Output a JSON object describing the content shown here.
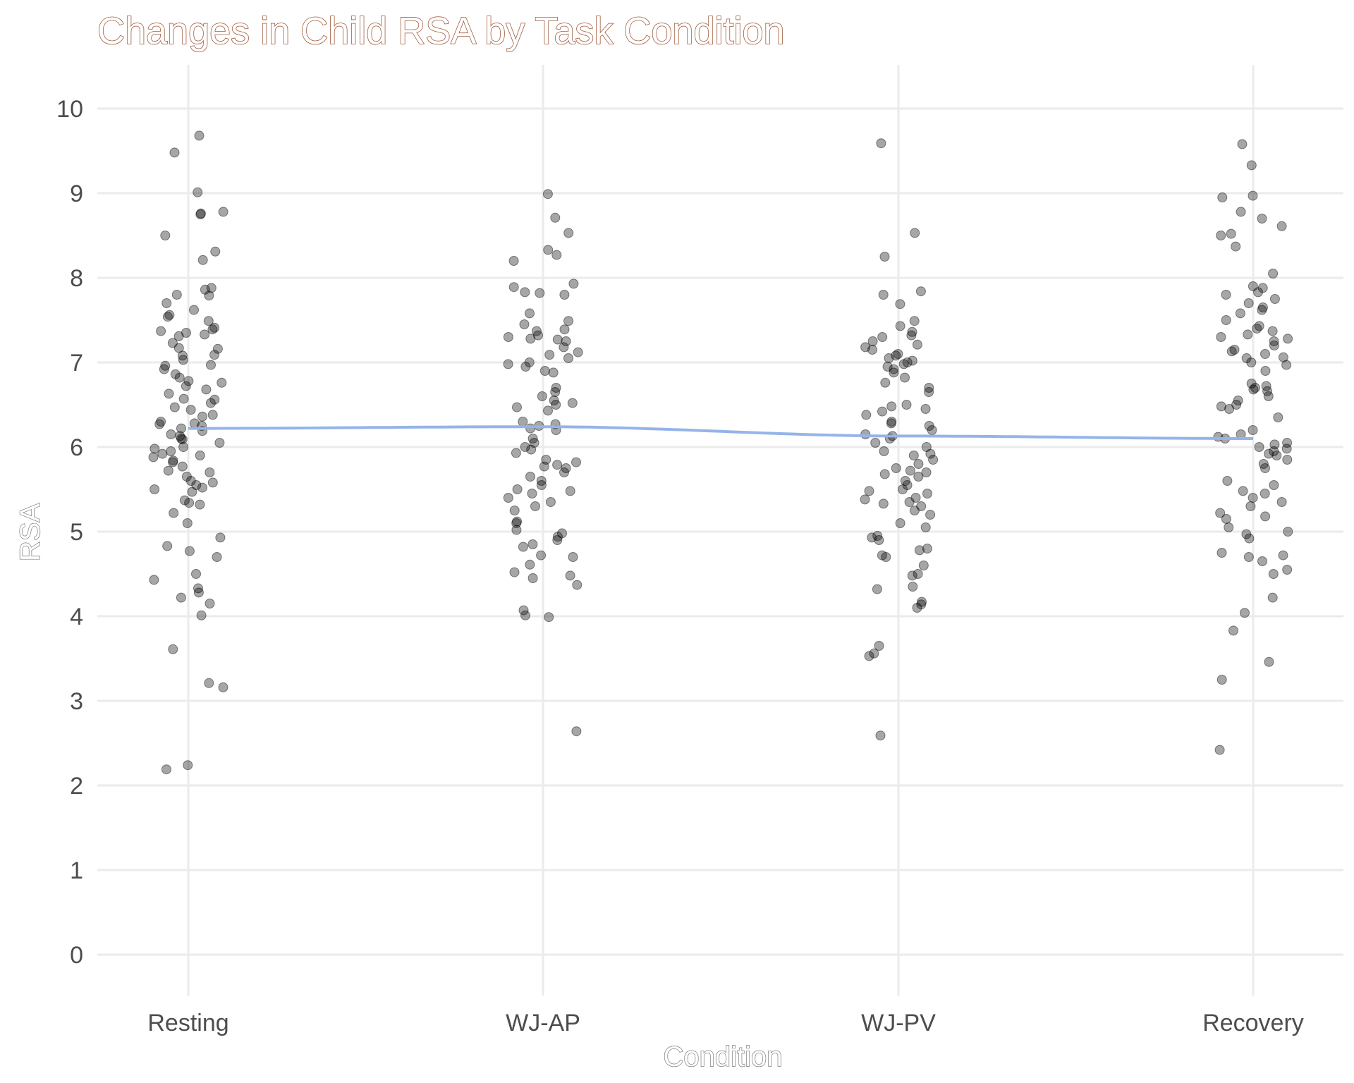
{
  "chart_data": {
    "type": "scatter",
    "title": "Changes in Child RSA by Task Condition",
    "xlabel": "Condition",
    "ylabel": "RSA",
    "categories": [
      "Resting",
      "WJ-AP",
      "WJ-PV",
      "Recovery"
    ],
    "ylim": [
      -0.5,
      10.5
    ],
    "yticks": [
      "0",
      "1",
      "2",
      "3",
      "4",
      "5",
      "6",
      "7",
      "8",
      "9",
      "10"
    ],
    "grid": true,
    "legend": "none",
    "colors": {
      "points": "#000000",
      "trend": "#95b4e8",
      "grid": "#ebebeb"
    },
    "trend_line": {
      "values": [
        6.22,
        6.24,
        6.13,
        6.1
      ]
    },
    "series": [
      {
        "category": "Resting",
        "values": [
          9.68,
          9.48,
          9.01,
          8.78,
          8.76,
          8.75,
          8.5,
          8.31,
          8.21,
          7.88,
          7.86,
          7.8,
          7.79,
          7.7,
          7.62,
          7.56,
          7.54,
          7.49,
          7.41,
          7.39,
          7.37,
          7.35,
          7.33,
          7.31,
          7.23,
          7.17,
          7.16,
          7.09,
          7.08,
          7.03,
          6.97,
          6.96,
          6.92,
          6.86,
          6.82,
          6.78,
          6.76,
          6.72,
          6.68,
          6.63,
          6.57,
          6.56,
          6.52,
          6.47,
          6.44,
          6.38,
          6.36,
          6.3,
          6.28,
          6.27,
          6.25,
          6.22,
          6.19,
          6.15,
          6.13,
          6.1,
          6.09,
          6.05,
          6.0,
          5.98,
          5.95,
          5.92,
          5.9,
          5.88,
          5.84,
          5.82,
          5.77,
          5.72,
          5.7,
          5.65,
          5.6,
          5.58,
          5.55,
          5.52,
          5.5,
          5.47,
          5.37,
          5.34,
          5.32,
          5.22,
          5.1,
          4.93,
          4.83,
          4.77,
          4.7,
          4.5,
          4.43,
          4.33,
          4.28,
          4.22,
          4.15,
          4.01,
          3.61,
          3.21,
          3.16,
          2.24,
          2.19
        ]
      },
      {
        "category": "WJ-AP",
        "values": [
          8.99,
          8.71,
          8.53,
          8.33,
          8.27,
          8.2,
          7.93,
          7.89,
          7.83,
          7.82,
          7.8,
          7.58,
          7.49,
          7.45,
          7.39,
          7.37,
          7.32,
          7.3,
          7.28,
          7.27,
          7.25,
          7.18,
          7.12,
          7.09,
          7.05,
          7.0,
          6.98,
          6.95,
          6.9,
          6.88,
          6.7,
          6.65,
          6.6,
          6.55,
          6.52,
          6.5,
          6.47,
          6.43,
          6.3,
          6.27,
          6.25,
          6.22,
          6.2,
          6.1,
          6.05,
          6.0,
          5.97,
          5.93,
          5.85,
          5.82,
          5.79,
          5.77,
          5.75,
          5.7,
          5.65,
          5.6,
          5.55,
          5.5,
          5.48,
          5.45,
          5.4,
          5.35,
          5.3,
          5.25,
          5.12,
          5.1,
          5.02,
          4.98,
          4.94,
          4.9,
          4.85,
          4.82,
          4.72,
          4.7,
          4.61,
          4.52,
          4.48,
          4.45,
          4.37,
          4.07,
          4.01,
          3.99,
          2.64
        ]
      },
      {
        "category": "WJ-PV",
        "values": [
          9.59,
          8.53,
          8.25,
          7.84,
          7.8,
          7.69,
          7.49,
          7.43,
          7.36,
          7.32,
          7.3,
          7.25,
          7.21,
          7.18,
          7.15,
          7.1,
          7.08,
          7.05,
          7.02,
          7.0,
          6.98,
          6.95,
          6.92,
          6.88,
          6.82,
          6.76,
          6.7,
          6.65,
          6.5,
          6.48,
          6.45,
          6.42,
          6.38,
          6.3,
          6.28,
          6.25,
          6.2,
          6.15,
          6.13,
          6.1,
          6.05,
          6.0,
          5.95,
          5.92,
          5.9,
          5.85,
          5.8,
          5.75,
          5.72,
          5.7,
          5.68,
          5.65,
          5.6,
          5.55,
          5.5,
          5.48,
          5.45,
          5.4,
          5.38,
          5.35,
          5.33,
          5.3,
          5.25,
          5.2,
          5.1,
          5.05,
          4.95,
          4.93,
          4.9,
          4.8,
          4.78,
          4.72,
          4.7,
          4.6,
          4.5,
          4.48,
          4.35,
          4.32,
          4.17,
          4.14,
          4.1,
          3.65,
          3.56,
          3.53,
          2.59
        ]
      },
      {
        "category": "Recovery",
        "values": [
          9.58,
          9.33,
          8.97,
          8.95,
          8.78,
          8.7,
          8.61,
          8.52,
          8.5,
          8.37,
          8.05,
          7.9,
          7.88,
          7.83,
          7.8,
          7.75,
          7.7,
          7.65,
          7.62,
          7.58,
          7.5,
          7.43,
          7.4,
          7.37,
          7.33,
          7.3,
          7.28,
          7.25,
          7.2,
          7.15,
          7.13,
          7.1,
          7.06,
          7.05,
          7.0,
          6.97,
          6.9,
          6.75,
          6.72,
          6.7,
          6.68,
          6.66,
          6.6,
          6.55,
          6.5,
          6.48,
          6.45,
          6.35,
          6.2,
          6.15,
          6.12,
          6.1,
          6.05,
          6.03,
          6.0,
          5.98,
          5.95,
          5.92,
          5.9,
          5.85,
          5.8,
          5.75,
          5.6,
          5.55,
          5.48,
          5.45,
          5.4,
          5.35,
          5.3,
          5.22,
          5.18,
          5.15,
          5.05,
          5.0,
          4.97,
          4.92,
          4.75,
          4.72,
          4.7,
          4.65,
          4.55,
          4.5,
          4.22,
          4.04,
          3.83,
          3.46,
          3.25,
          2.42
        ]
      }
    ]
  }
}
